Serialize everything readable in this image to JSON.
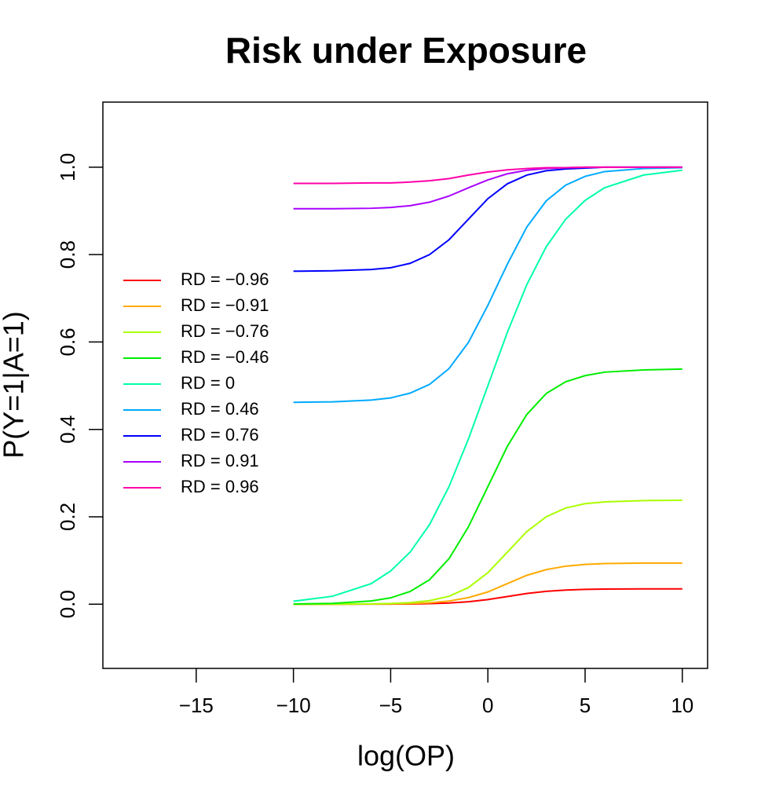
{
  "chart_data": {
    "type": "line",
    "title": "Risk under Exposure",
    "x_label": "log(OP)",
    "y_label": "P(Y=1|A=1)",
    "x": [
      -10,
      -8,
      -6,
      -5,
      -4,
      -3,
      -2,
      -1,
      0,
      1,
      2,
      3,
      4,
      5,
      6,
      8,
      10
    ],
    "series": [
      {
        "name": "RD = −0.96",
        "color": "#ff0000",
        "values": [
          0,
          0,
          0.0001,
          0.0002,
          0.0005,
          0.0012,
          0.0027,
          0.0056,
          0.0106,
          0.0175,
          0.0244,
          0.0294,
          0.0323,
          0.0338,
          0.0345,
          0.0349,
          0.035
        ]
      },
      {
        "name": "RD = −0.91",
        "color": "#ffaa00",
        "values": [
          0,
          0,
          0.0003,
          0.0006,
          0.0014,
          0.0032,
          0.0071,
          0.015,
          0.028,
          0.047,
          0.066,
          0.079,
          0.087,
          0.091,
          0.093,
          0.094,
          0.094
        ]
      },
      {
        "name": "RD = −0.76",
        "color": "#aaff00",
        "values": [
          0,
          0.0001,
          0.0007,
          0.0016,
          0.0036,
          0.0081,
          0.018,
          0.038,
          0.072,
          0.119,
          0.166,
          0.2,
          0.22,
          0.23,
          0.234,
          0.237,
          0.238
        ]
      },
      {
        "name": "RD = −0.46",
        "color": "#00ee00",
        "values": [
          0.0004,
          0.0018,
          0.0073,
          0.0145,
          0.029,
          0.056,
          0.104,
          0.177,
          0.269,
          0.361,
          0.434,
          0.482,
          0.509,
          0.523,
          0.531,
          0.536,
          0.538
        ]
      },
      {
        "name": "RD = 0",
        "color": "#00ffaa",
        "values": [
          0.0067,
          0.018,
          0.047,
          0.076,
          0.119,
          0.182,
          0.269,
          0.378,
          0.5,
          0.622,
          0.731,
          0.818,
          0.881,
          0.924,
          0.953,
          0.982,
          0.993
        ]
      },
      {
        "name": "RD = 0.46",
        "color": "#00aaff",
        "values": [
          0.462,
          0.463,
          0.467,
          0.472,
          0.483,
          0.503,
          0.539,
          0.599,
          0.684,
          0.778,
          0.863,
          0.923,
          0.959,
          0.979,
          0.99,
          0.997,
          0.999
        ]
      },
      {
        "name": "RD = 0.76",
        "color": "#0000ff",
        "values": [
          0.762,
          0.763,
          0.766,
          0.77,
          0.78,
          0.8,
          0.834,
          0.881,
          0.928,
          0.962,
          0.982,
          0.992,
          0.996,
          0.998,
          1,
          1,
          1
        ]
      },
      {
        "name": "RD = 0.91",
        "color": "#aa00ff",
        "values": [
          0.905,
          0.905,
          0.906,
          0.908,
          0.912,
          0.92,
          0.934,
          0.953,
          0.971,
          0.985,
          0.993,
          0.997,
          0.999,
          1,
          1,
          1,
          1
        ]
      },
      {
        "name": "RD = 0.96",
        "color": "#ff00aa",
        "values": [
          0.963,
          0.963,
          0.964,
          0.964,
          0.966,
          0.969,
          0.974,
          0.982,
          0.989,
          0.994,
          0.997,
          0.999,
          0.999,
          1,
          1,
          1,
          1
        ]
      }
    ],
    "xlim": [
      -19.8,
      11.3
    ],
    "ylim": [
      -0.147,
      1.149
    ],
    "xticks": [
      {
        "value": -15,
        "label": "−15"
      },
      {
        "value": -10,
        "label": "−10"
      },
      {
        "value": -5,
        "label": "−5"
      },
      0,
      5,
      10
    ],
    "yticks": [
      {
        "value": 0,
        "label": "0.0"
      },
      {
        "value": 0.2,
        "label": "0.2"
      },
      {
        "value": 0.4,
        "label": "0.4"
      },
      {
        "value": 0.6,
        "label": "0.6"
      },
      {
        "value": 0.8,
        "label": "0.8"
      },
      {
        "value": 1,
        "label": "1.0"
      }
    ],
    "legend": "left"
  }
}
